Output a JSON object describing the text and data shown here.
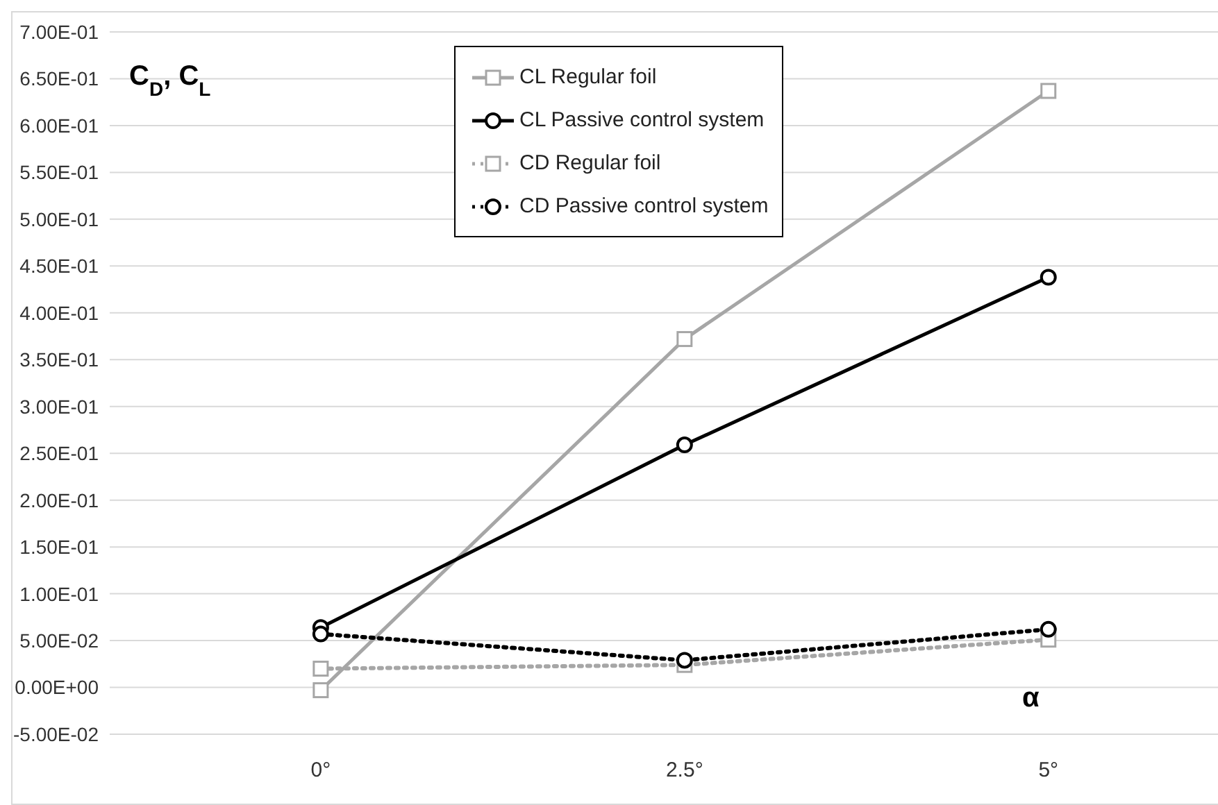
{
  "chart_data": {
    "type": "line",
    "ylabel": "C$_{D}$, C$_{L}$",
    "xlabel": "α",
    "categories": [
      "0°",
      "2.5°",
      "5°"
    ],
    "series": [
      {
        "name": "CL Regular foil",
        "color": "#a6a6a6",
        "marker": "square",
        "line_style": "solid",
        "values": [
          -0.003,
          0.372,
          0.637
        ]
      },
      {
        "name": "CL Passive control system",
        "color": "#000000",
        "marker": "circle",
        "line_style": "solid",
        "values": [
          0.064,
          0.259,
          0.438
        ]
      },
      {
        "name": "CD Regular foil",
        "color": "#a6a6a6",
        "marker": "square",
        "line_style": "dotted",
        "values": [
          0.02,
          0.024,
          0.051
        ]
      },
      {
        "name": "CD Passive control system",
        "color": "#000000",
        "marker": "circle",
        "line_style": "dotted",
        "values": [
          0.057,
          0.029,
          0.062
        ]
      }
    ],
    "ylim": [
      -0.05,
      0.7
    ],
    "yticks": [
      {
        "value": -0.05,
        "label": "-5.00E-02"
      },
      {
        "value": 0,
        "label": "0.00E+00"
      },
      {
        "value": 0.05,
        "label": "5.00E-02"
      },
      {
        "value": 0.1,
        "label": "1.00E-01"
      },
      {
        "value": 0.15,
        "label": "1.50E-01"
      },
      {
        "value": 0.2,
        "label": "2.00E-01"
      },
      {
        "value": 0.25,
        "label": "2.50E-01"
      },
      {
        "value": 0.3,
        "label": "3.00E-01"
      },
      {
        "value": 0.35,
        "label": "3.50E-01"
      },
      {
        "value": 0.4,
        "label": "4.00E-01"
      },
      {
        "value": 0.45,
        "label": "4.50E-01"
      },
      {
        "value": 0.5,
        "label": "5.00E-01"
      },
      {
        "value": 0.55,
        "label": "5.50E-01"
      },
      {
        "value": 0.6,
        "label": "6.00E-01"
      },
      {
        "value": 0.65,
        "label": "6.50E-01"
      },
      {
        "value": 0.7,
        "label": "7.00E-01"
      }
    ],
    "grid": "y",
    "legend": "top"
  }
}
